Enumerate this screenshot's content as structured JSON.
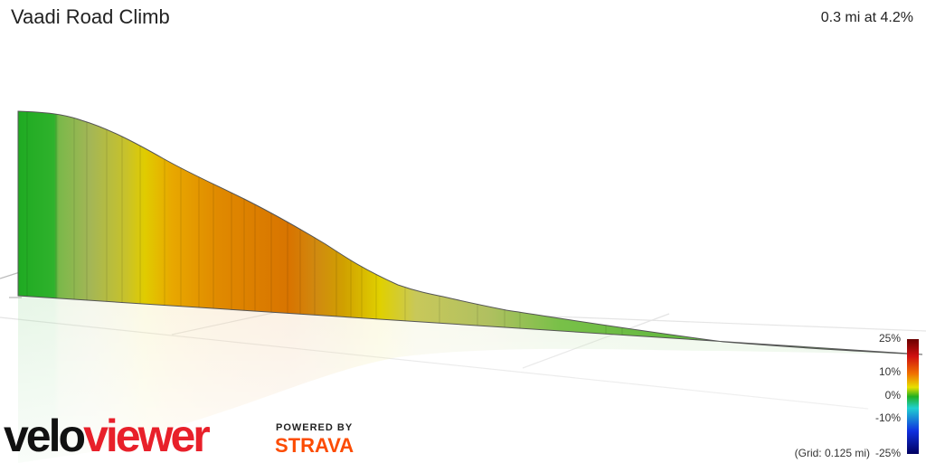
{
  "header": {
    "title": "Vaadi Road Climb",
    "summary": "0.3 mi at 4.2%"
  },
  "legend": {
    "labels": [
      "25%",
      "10%",
      "0%",
      "-10%",
      "-25%"
    ],
    "grid_note": "(Grid: 0.125 mi)"
  },
  "branding": {
    "logo_part1": "velo",
    "logo_part2": "viewer",
    "powered_by": "POWERED BY",
    "partner": "STRAVA"
  }
}
